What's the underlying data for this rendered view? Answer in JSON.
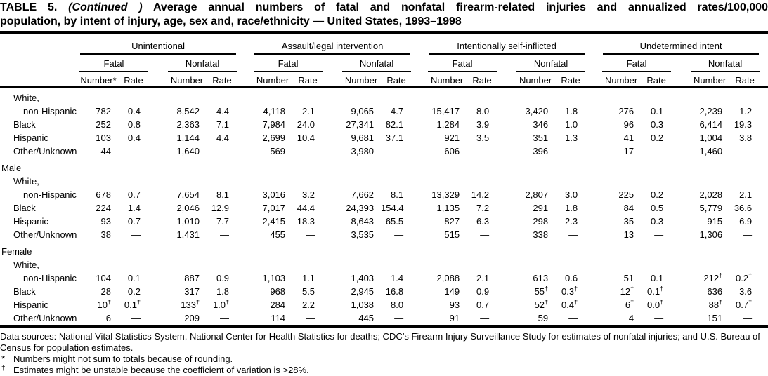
{
  "title": {
    "label": "TABLE 5.",
    "continued": "(Continued )",
    "line1": "Average annual numbers of fatal and nonfatal firearm-related injuries and annualized rates/100,000",
    "line2": "population, by intent of injury, age, sex and, race/ethnicity — United States, 1993–1998"
  },
  "header": {
    "groups": [
      {
        "label": "Unintentional",
        "subs": [
          {
            "label": "Fatal",
            "cols": [
              "Number*",
              "Rate"
            ]
          },
          {
            "label": "Nonfatal",
            "cols": [
              "Number",
              "Rate"
            ]
          }
        ]
      },
      {
        "label": "Assault/legal intervention",
        "subs": [
          {
            "label": "Fatal",
            "cols": [
              "Number",
              "Rate"
            ]
          },
          {
            "label": "Nonfatal",
            "cols": [
              "Number",
              "Rate"
            ]
          }
        ]
      },
      {
        "label": "Intentionally self-inflicted",
        "subs": [
          {
            "label": "Fatal",
            "cols": [
              "Number",
              "Rate"
            ]
          },
          {
            "label": "Nonfatal",
            "cols": [
              "Number",
              "Rate"
            ]
          }
        ]
      },
      {
        "label": "Undetermined intent",
        "subs": [
          {
            "label": "Fatal",
            "cols": [
              "Number",
              "Rate"
            ]
          },
          {
            "label": "Nonfatal",
            "cols": [
              "Number",
              "Rate"
            ]
          }
        ]
      }
    ]
  },
  "table": {
    "sections": [
      {
        "label": "",
        "rows": [
          {
            "label_lines": [
              "White,",
              "non-Hispanic"
            ],
            "values": [
              "782",
              "0.4",
              "8,542",
              "4.4",
              "4,118",
              "2.1",
              "9,065",
              "4.7",
              "15,417",
              "8.0",
              "3,420",
              "1.8",
              "276",
              "0.1",
              "2,239",
              "1.2"
            ]
          },
          {
            "label_lines": [
              "Black"
            ],
            "values": [
              "252",
              "0.8",
              "2,363",
              "7.1",
              "7,984",
              "24.0",
              "27,341",
              "82.1",
              "1,284",
              "3.9",
              "346",
              "1.0",
              "96",
              "0.3",
              "6,414",
              "19.3"
            ]
          },
          {
            "label_lines": [
              "Hispanic"
            ],
            "values": [
              "103",
              "0.4",
              "1,144",
              "4.4",
              "2,699",
              "10.4",
              "9,681",
              "37.1",
              "921",
              "3.5",
              "351",
              "1.3",
              "41",
              "0.2",
              "1,004",
              "3.8"
            ]
          },
          {
            "label_lines": [
              "Other/Unknown"
            ],
            "values": [
              "44",
              "—",
              "1,640",
              "—",
              "569",
              "—",
              "3,980",
              "—",
              "606",
              "—",
              "396",
              "—",
              "17",
              "—",
              "1,460",
              "—"
            ]
          }
        ]
      },
      {
        "label": "Male",
        "rows": [
          {
            "label_lines": [
              "White,",
              "non-Hispanic"
            ],
            "values": [
              "678",
              "0.7",
              "7,654",
              "8.1",
              "3,016",
              "3.2",
              "7,662",
              "8.1",
              "13,329",
              "14.2",
              "2,807",
              "3.0",
              "225",
              "0.2",
              "2,028",
              "2.1"
            ]
          },
          {
            "label_lines": [
              "Black"
            ],
            "values": [
              "224",
              "1.4",
              "2,046",
              "12.9",
              "7,017",
              "44.4",
              "24,393",
              "154.4",
              "1,135",
              "7.2",
              "291",
              "1.8",
              "84",
              "0.5",
              "5,779",
              "36.6"
            ]
          },
          {
            "label_lines": [
              "Hispanic"
            ],
            "values": [
              "93",
              "0.7",
              "1,010",
              "7.7",
              "2,415",
              "18.3",
              "8,643",
              "65.5",
              "827",
              "6.3",
              "298",
              "2.3",
              "35",
              "0.3",
              "915",
              "6.9"
            ]
          },
          {
            "label_lines": [
              "Other/Unknown"
            ],
            "values": [
              "38",
              "—",
              "1,431",
              "—",
              "455",
              "—",
              "3,535",
              "—",
              "515",
              "—",
              "338",
              "—",
              "13",
              "—",
              "1,306",
              "—"
            ]
          }
        ]
      },
      {
        "label": "Female",
        "rows": [
          {
            "label_lines": [
              "White,",
              "non-Hispanic"
            ],
            "values": [
              "104",
              "0.1",
              "887",
              "0.9",
              "1,103",
              "1.1",
              "1,403",
              "1.4",
              "2,088",
              "2.1",
              "613",
              "0.6",
              "51",
              "0.1",
              "212†",
              "0.2†"
            ]
          },
          {
            "label_lines": [
              "Black"
            ],
            "values": [
              "28",
              "0.2",
              "317",
              "1.8",
              "968",
              "5.5",
              "2,945",
              "16.8",
              "149",
              "0.9",
              "55†",
              "0.3†",
              "12†",
              "0.1†",
              "636",
              "3.6"
            ]
          },
          {
            "label_lines": [
              "Hispanic"
            ],
            "values": [
              "10†",
              "0.1†",
              "133†",
              "1.0†",
              "284",
              "2.2",
              "1,038",
              "8.0",
              "93",
              "0.7",
              "52†",
              "0.4†",
              "6†",
              "0.0†",
              "88†",
              "0.7†"
            ]
          },
          {
            "label_lines": [
              "Other/Unknown"
            ],
            "values": [
              "6",
              "—",
              "209",
              "—",
              "114",
              "—",
              "445",
              "—",
              "91",
              "—",
              "59",
              "—",
              "4",
              "—",
              "151",
              "—"
            ]
          }
        ]
      }
    ]
  },
  "footnotes": [
    {
      "marker": "",
      "text": "Data sources: National Vital Statistics System, National Center for Health Statistics for deaths; CDC’s Firearm Injury Surveillance Study for estimates of nonfatal injuries; and U.S. Bureau of Census for population estimates."
    },
    {
      "marker": "*",
      "text": "Numbers might not sum to totals because of rounding."
    },
    {
      "marker": "†",
      "text": "Estimates might be unstable because the coefficient of variation is >28%."
    }
  ]
}
